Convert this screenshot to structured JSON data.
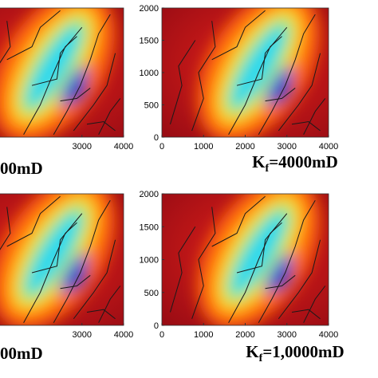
{
  "chart_data": [
    {
      "type": "heatmap",
      "caption": "00mD",
      "xlim": [
        0,
        4000
      ],
      "xticks": [
        3000,
        4000
      ],
      "ylim": [
        0,
        2000
      ]
    },
    {
      "type": "heatmap",
      "caption": {
        "main": "K",
        "sub": "f",
        "rest": "=4000mD"
      },
      "xlim": [
        0,
        4000
      ],
      "xticks": [
        0,
        1000,
        2000,
        3000,
        4000
      ],
      "ylim": [
        0,
        2000
      ],
      "yticks": [
        0,
        500,
        1000,
        1500,
        2000
      ]
    },
    {
      "type": "heatmap",
      "caption": "00mD",
      "xlim": [
        0,
        4000
      ],
      "xticks": [
        3000,
        4000
      ],
      "ylim": [
        0,
        2000
      ]
    },
    {
      "type": "heatmap",
      "caption": {
        "main": "K",
        "sub": "f",
        "rest": "=1,0000mD"
      },
      "xlim": [
        0,
        4000
      ],
      "xticks": [
        0,
        1000,
        2000,
        3000,
        4000
      ],
      "ylim": [
        0,
        2000
      ],
      "yticks": [
        0,
        500,
        1000,
        1500,
        2000
      ]
    }
  ]
}
